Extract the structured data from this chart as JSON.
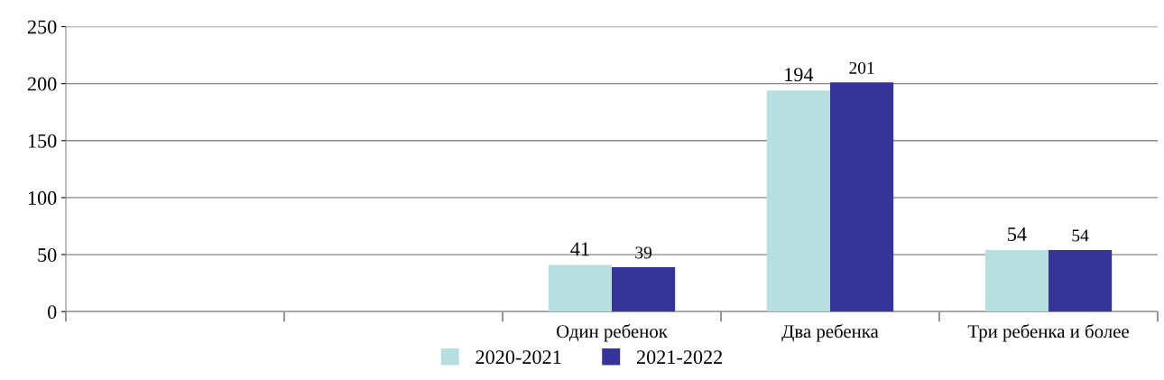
{
  "chart_data": {
    "type": "bar",
    "categories": [
      null,
      null,
      "Один ребенок",
      "Два ребенка",
      "Три ребенка и более"
    ],
    "series": [
      {
        "name": "2020-2021",
        "color": "#b8dfe0",
        "values": [
          null,
          null,
          41,
          194,
          54
        ]
      },
      {
        "name": "2021-2022",
        "color": "#363597",
        "values": [
          null,
          null,
          39,
          201,
          54
        ]
      }
    ],
    "ylim": [
      0,
      250
    ],
    "yticks": [
      0,
      50,
      100,
      150,
      200,
      250
    ],
    "grid": "y",
    "legend": "bottom",
    "data_labels": true
  }
}
